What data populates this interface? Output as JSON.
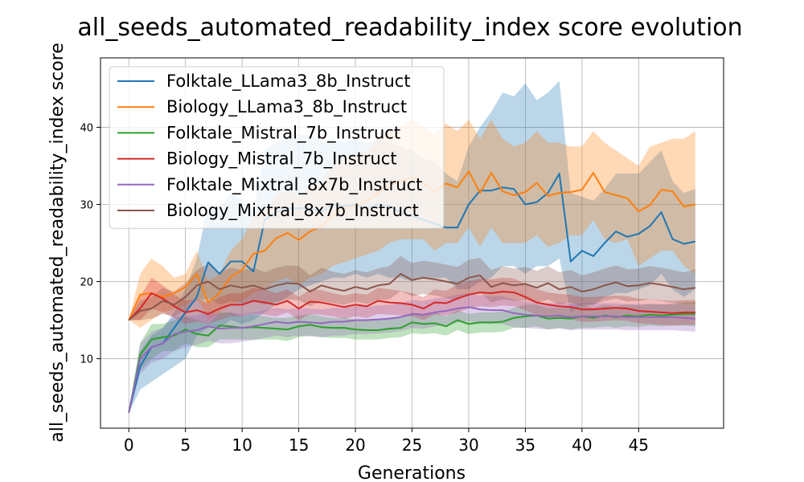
{
  "chart_data": {
    "type": "line",
    "title": "all_seeds_automated_readability_index score evolution",
    "xlabel": "Generations",
    "ylabel": "all_seeds_automated_readability_index score",
    "xlim": [
      -2.5,
      52.5
    ],
    "ylim": [
      1,
      49
    ],
    "xticks": [
      0,
      5,
      10,
      15,
      20,
      25,
      30,
      35,
      40,
      45
    ],
    "yticks": [
      10,
      20,
      30,
      40
    ],
    "grid": true,
    "legend_position": "top-left",
    "series": [
      {
        "name": "Folktale_LLama3_8b_Instruct",
        "color": "#1f77b4",
        "mean": [
          3,
          9,
          11.5,
          12,
          14,
          16,
          18,
          22.5,
          21,
          22.6,
          22.6,
          21.3,
          28,
          29,
          29.5,
          29.5,
          29.5,
          29,
          30,
          29.8,
          30,
          29.5,
          30,
          29.8,
          29,
          28.5,
          28,
          27.5,
          27,
          27,
          30,
          31.8,
          31.8,
          32.2,
          32,
          30,
          30.3,
          31.5,
          34,
          22.6,
          24,
          23.3,
          25,
          26.5,
          25.8,
          26.2,
          27.2,
          29,
          25.5,
          24.9,
          25.2
        ],
        "lower": [
          3,
          6,
          7,
          8,
          9,
          10,
          13,
          14,
          14,
          15,
          14.5,
          15,
          16,
          17,
          18,
          19,
          19.5,
          20,
          20.5,
          20.5,
          21,
          20.5,
          21,
          20.5,
          20.5,
          20,
          20.5,
          20.5,
          20.5,
          19,
          19,
          20,
          20.5,
          22,
          22,
          21,
          22,
          22,
          23,
          16,
          17,
          17,
          18,
          18.5,
          18.5,
          19,
          19.5,
          21,
          19,
          18,
          19
        ],
        "upper": [
          3,
          11,
          13,
          14,
          16,
          19,
          23,
          30,
          29.5,
          31.5,
          30.5,
          29,
          37,
          38,
          39,
          39,
          39,
          38,
          38.5,
          38,
          38.5,
          38,
          38.5,
          38,
          37.5,
          37,
          36,
          35.5,
          34,
          33,
          37.5,
          40,
          42,
          44.5,
          44,
          45.7,
          43.5,
          44.5,
          46,
          31.5,
          31,
          30.5,
          32,
          34,
          34,
          34,
          35.5,
          37,
          33,
          31.5,
          32
        ]
      },
      {
        "name": "Biology_LLama3_8b_Instruct",
        "color": "#ff7f0e",
        "mean": [
          15,
          18.3,
          18.5,
          18,
          18.5,
          19.3,
          21,
          17.3,
          18.5,
          20.6,
          21.5,
          23.6,
          24,
          25.6,
          26.3,
          25.4,
          26.5,
          27.2,
          28.5,
          29.5,
          29.8,
          30.5,
          31.5,
          32.5,
          33,
          33.5,
          32.8,
          31.7,
          32.7,
          32.2,
          34.3,
          31.5,
          34.1,
          31.7,
          31.2,
          31.6,
          32.8,
          31.1,
          31.5,
          31.6,
          31.9,
          34.1,
          31.6,
          31.2,
          30.8,
          29.1,
          29.9,
          31.9,
          31.7,
          29.7,
          30
        ],
        "lower": [
          15,
          14,
          15,
          16,
          16.5,
          17,
          18,
          15,
          16,
          17,
          17.5,
          18.5,
          19,
          20,
          20.5,
          19.5,
          20.5,
          21,
          22,
          22.5,
          23,
          23.5,
          24,
          25,
          25.5,
          25.5,
          25.5,
          24,
          25,
          25,
          27,
          24.5,
          27,
          25,
          25,
          25,
          26,
          24.5,
          25,
          26,
          26,
          28,
          25.5,
          25,
          25.5,
          22,
          23,
          24,
          24,
          22,
          21
        ],
        "upper": [
          15,
          21,
          23,
          22,
          20.5,
          21,
          24,
          20,
          21,
          24,
          25.5,
          28.5,
          29,
          31,
          32,
          31,
          32.5,
          33,
          35,
          36,
          36.5,
          37,
          38.5,
          39.5,
          40,
          41,
          40,
          39,
          40.5,
          39.5,
          41,
          38.5,
          41,
          38.5,
          37.5,
          38,
          39.5,
          38,
          38,
          37.5,
          37.5,
          39.5,
          38,
          37,
          36,
          35,
          37.5,
          38,
          38.5,
          38.5,
          39.5
        ]
      },
      {
        "name": "Folktale_Mistral_7b_Instruct",
        "color": "#2ca02c",
        "mean": [
          3,
          10.5,
          12.5,
          12.8,
          13,
          13.8,
          13.2,
          13,
          14.3,
          14.2,
          14,
          14.1,
          14,
          13.9,
          13.8,
          14.2,
          14.4,
          14.1,
          14,
          14,
          13.8,
          13.7,
          13.7,
          13.9,
          14,
          14.7,
          14.5,
          14.6,
          14.2,
          15,
          14.5,
          14.7,
          14.7,
          14.8,
          15.3,
          15.5,
          15.6,
          15.2,
          15.3,
          15.2,
          15.5,
          15.3,
          15.6,
          15.4,
          15.6,
          15.5,
          15.7,
          15.6,
          15.7,
          15.8,
          15.8
        ],
        "lower": [
          3,
          8.5,
          10,
          11,
          11,
          12,
          11.5,
          11.5,
          12.5,
          12.5,
          12.5,
          12.5,
          12.5,
          12.5,
          12.3,
          12.8,
          13,
          12.8,
          12.7,
          12.7,
          12.5,
          12.5,
          12.5,
          12.7,
          12.8,
          13.3,
          13.2,
          13.3,
          13,
          13.7,
          13.2,
          13.4,
          13.4,
          13.5,
          14,
          14,
          14.2,
          13.8,
          14,
          13.8,
          14,
          14,
          14.2,
          14,
          14.2,
          14.1,
          14.3,
          14.2,
          14.3,
          14.3,
          14.2
        ],
        "upper": [
          3,
          12,
          14.5,
          14.5,
          15,
          15.5,
          15,
          14.5,
          16,
          16,
          15.5,
          15.7,
          15.5,
          15.3,
          15.3,
          15.6,
          15.8,
          15.5,
          15.3,
          15.3,
          15.1,
          15,
          15,
          15.2,
          15.3,
          16,
          15.8,
          16,
          15.5,
          16.3,
          15.8,
          16,
          16,
          16.1,
          16.6,
          17,
          17,
          16.6,
          16.6,
          16.6,
          17,
          16.6,
          17,
          16.8,
          17,
          16.9,
          17.1,
          17,
          17.1,
          17.3,
          17.4
        ]
      },
      {
        "name": "Biology_Mistral_7b_Instruct",
        "color": "#d62728",
        "mean": [
          15,
          16.5,
          18.5,
          17.8,
          16.8,
          16,
          16.3,
          15.8,
          16.5,
          17,
          17,
          17.5,
          17.3,
          17,
          17.5,
          16.5,
          17.4,
          17.3,
          17,
          16.7,
          17,
          16.8,
          17.5,
          17.3,
          17.2,
          17,
          16.5,
          17.3,
          17.2,
          17.8,
          18.3,
          18.6,
          18.5,
          18.7,
          18.6,
          18,
          17.3,
          17,
          16.8,
          16.7,
          16.4,
          16.4,
          16.5,
          16.6,
          16.5,
          16.2,
          16.1,
          16,
          15.9,
          16,
          16
        ],
        "lower": [
          15,
          15,
          16.5,
          16,
          15.3,
          14.5,
          14.8,
          14.5,
          15,
          15.5,
          15.5,
          15.8,
          15.7,
          15.5,
          16,
          15,
          15.8,
          15.7,
          15.5,
          15.2,
          15.5,
          15.3,
          15.8,
          15.7,
          15.6,
          15.5,
          15,
          15.7,
          15.6,
          16,
          16.5,
          16.8,
          16.7,
          16.9,
          16.8,
          16.3,
          15.7,
          15.4,
          15.2,
          15.1,
          14.8,
          14.8,
          14.9,
          15,
          14.9,
          14.6,
          14.5,
          14.4,
          14.3,
          14.4,
          14.4
        ],
        "upper": [
          15,
          18,
          20.5,
          19.5,
          18.3,
          17.5,
          17.8,
          17.2,
          18,
          18.5,
          18.5,
          19.2,
          19,
          18.5,
          19,
          18,
          19,
          18.9,
          18.5,
          18.2,
          18.5,
          18.3,
          19.2,
          19,
          18.8,
          18.5,
          18,
          19,
          18.8,
          19.6,
          20.1,
          20.4,
          20.3,
          20.5,
          20.4,
          19.7,
          19,
          18.6,
          18.4,
          18.3,
          18,
          18,
          18.1,
          18.2,
          18.1,
          17.8,
          17.7,
          17.6,
          17.5,
          17.6,
          17.6
        ]
      },
      {
        "name": "Folktale_Mixtral_8x7b_Instruct",
        "color": "#9467bd",
        "mean": [
          3,
          10,
          11.5,
          12,
          13.2,
          13.5,
          13.7,
          14.2,
          13.9,
          14,
          14,
          14.2,
          14.5,
          14.8,
          14.6,
          14.8,
          14.7,
          14.6,
          14.8,
          14.8,
          15,
          15,
          15.1,
          15.2,
          15.4,
          15.8,
          15.7,
          16,
          16.2,
          16.5,
          16.7,
          16.4,
          16.3,
          16.3,
          15.9,
          15.7,
          15.6,
          15.5,
          15.6,
          15.4,
          15.5,
          15.5,
          15.5,
          15.5,
          15.4,
          15.4,
          15.4,
          15.4,
          15.4,
          15.3,
          15.2
        ],
        "lower": [
          3,
          8,
          9.5,
          10,
          11,
          11.5,
          11.8,
          12.3,
          12,
          12,
          12.2,
          12.4,
          12.7,
          13,
          12.8,
          13,
          12.9,
          12.8,
          13,
          13,
          13.2,
          13.2,
          13.3,
          13.4,
          13.6,
          14,
          13.9,
          14.2,
          14.4,
          14.7,
          14.9,
          14.6,
          14.5,
          14.5,
          14.1,
          14,
          13.9,
          13.8,
          13.9,
          13.7,
          13.8,
          13.8,
          13.8,
          13.8,
          13.7,
          13.7,
          13.7,
          13.7,
          13.7,
          13.6,
          13.5
        ],
        "upper": [
          3,
          12,
          13.5,
          14,
          15.5,
          15.5,
          15.6,
          16.1,
          15.8,
          16,
          15.8,
          16,
          16.3,
          16.6,
          16.4,
          16.6,
          16.5,
          16.4,
          16.6,
          16.6,
          16.8,
          16.8,
          16.9,
          17,
          17.2,
          17.6,
          17.5,
          17.8,
          18,
          18.3,
          18.5,
          18.2,
          18.1,
          18.1,
          17.7,
          17.4,
          17.3,
          17.2,
          17.3,
          17.1,
          17.2,
          17.2,
          17.2,
          17.2,
          17.1,
          17.1,
          17.1,
          17.1,
          17.1,
          17,
          16.9
        ]
      },
      {
        "name": "Biology_Mixtral_8x7b_Instruct",
        "color": "#8c564b",
        "mean": [
          15,
          16.2,
          16.5,
          17.5,
          17,
          18,
          19.5,
          20,
          19,
          19.5,
          19.2,
          19.5,
          19,
          19.5,
          19.8,
          19.7,
          18.7,
          19.5,
          19.1,
          18.8,
          19.3,
          19,
          19.5,
          19.7,
          21,
          20.2,
          20.5,
          20.3,
          20,
          19.7,
          20.5,
          20.8,
          19.3,
          19.8,
          19.5,
          19.7,
          19.2,
          19.8,
          19,
          19.3,
          18.7,
          19,
          19.5,
          19.9,
          19.4,
          19.5,
          19.8,
          19.6,
          19.3,
          19,
          19.2
        ],
        "lower": [
          15,
          15,
          15.2,
          15.8,
          15.5,
          16.3,
          17.5,
          17.8,
          17,
          17.4,
          17.2,
          17.5,
          17,
          17.4,
          17.7,
          17.6,
          16.8,
          17.5,
          17.2,
          17,
          17.4,
          17.1,
          17.6,
          17.7,
          18.8,
          18.1,
          18.4,
          18.2,
          17.9,
          17.6,
          18.3,
          18.6,
          17.3,
          17.7,
          17.5,
          17.6,
          17.2,
          17.7,
          17,
          17.3,
          16.8,
          17,
          17.5,
          17.8,
          17.4,
          17.5,
          17.7,
          17.5,
          17.2,
          17,
          17
        ],
        "upper": [
          15,
          17.5,
          18,
          19.2,
          18.7,
          19.8,
          21.5,
          22.3,
          21.2,
          21.8,
          21.5,
          21.8,
          21.2,
          21.8,
          22.1,
          22,
          20.8,
          21.8,
          21.3,
          21,
          21.5,
          21.2,
          21.7,
          22,
          23.3,
          22.4,
          22.7,
          22.5,
          22.2,
          21.9,
          22.8,
          23.1,
          21.5,
          22,
          21.7,
          21.9,
          21.4,
          22,
          21.2,
          21.5,
          20.8,
          21.2,
          21.7,
          22.1,
          21.6,
          21.7,
          22,
          21.8,
          21.5,
          21.2,
          21.6
        ]
      }
    ]
  }
}
